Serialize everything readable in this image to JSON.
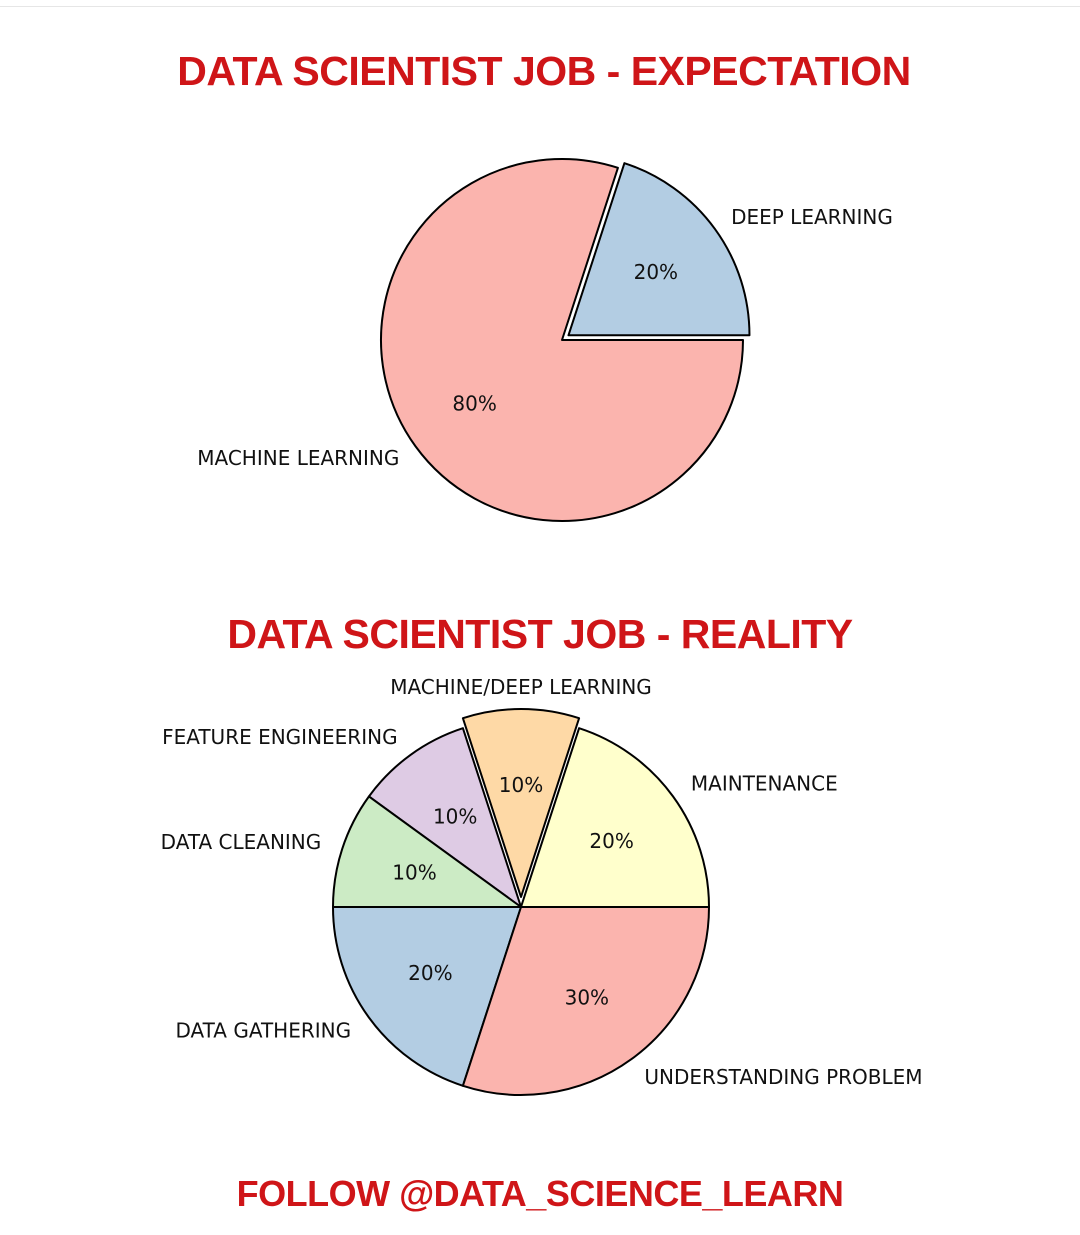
{
  "header": {
    "expectation_title": "DATA SCIENTIST JOB - EXPECTATION",
    "reality_title": "DATA SCIENTIST JOB - REALITY"
  },
  "footer": {
    "follow_text": "FOLLOW @DATA_SCIENCE_LEARN"
  },
  "chart_data": [
    {
      "type": "pie",
      "title": "DATA SCIENTIST JOB - EXPECTATION",
      "start_angle_deg": 0,
      "direction": "counterclockwise",
      "exploded": [
        "DEEP LEARNING"
      ],
      "slices": [
        {
          "label": "DEEP LEARNING",
          "value": 20,
          "display": "20%",
          "color": "#b3cde3"
        },
        {
          "label": "MACHINE LEARNING",
          "value": 80,
          "display": "80%",
          "color": "#fbb4ae"
        }
      ]
    },
    {
      "type": "pie",
      "title": "DATA SCIENTIST JOB - REALITY",
      "start_angle_deg": 0,
      "direction": "counterclockwise",
      "exploded": [
        "MACHINE/DEEP LEARNING"
      ],
      "slices": [
        {
          "label": "MAINTENANCE",
          "value": 20,
          "display": "20%",
          "color": "#ffffcc"
        },
        {
          "label": "MACHINE/DEEP LEARNING",
          "value": 10,
          "display": "10%",
          "color": "#fed9a6"
        },
        {
          "label": "FEATURE ENGINEERING",
          "value": 10,
          "display": "10%",
          "color": "#decbe4"
        },
        {
          "label": "DATA CLEANING",
          "value": 10,
          "display": "10%",
          "color": "#ccebc5"
        },
        {
          "label": "DATA GATHERING",
          "value": 20,
          "display": "20%",
          "color": "#b3cde3"
        },
        {
          "label": "UNDERSTANDING PROBLEM",
          "value": 30,
          "display": "30%",
          "color": "#fbb4ae"
        }
      ]
    }
  ]
}
